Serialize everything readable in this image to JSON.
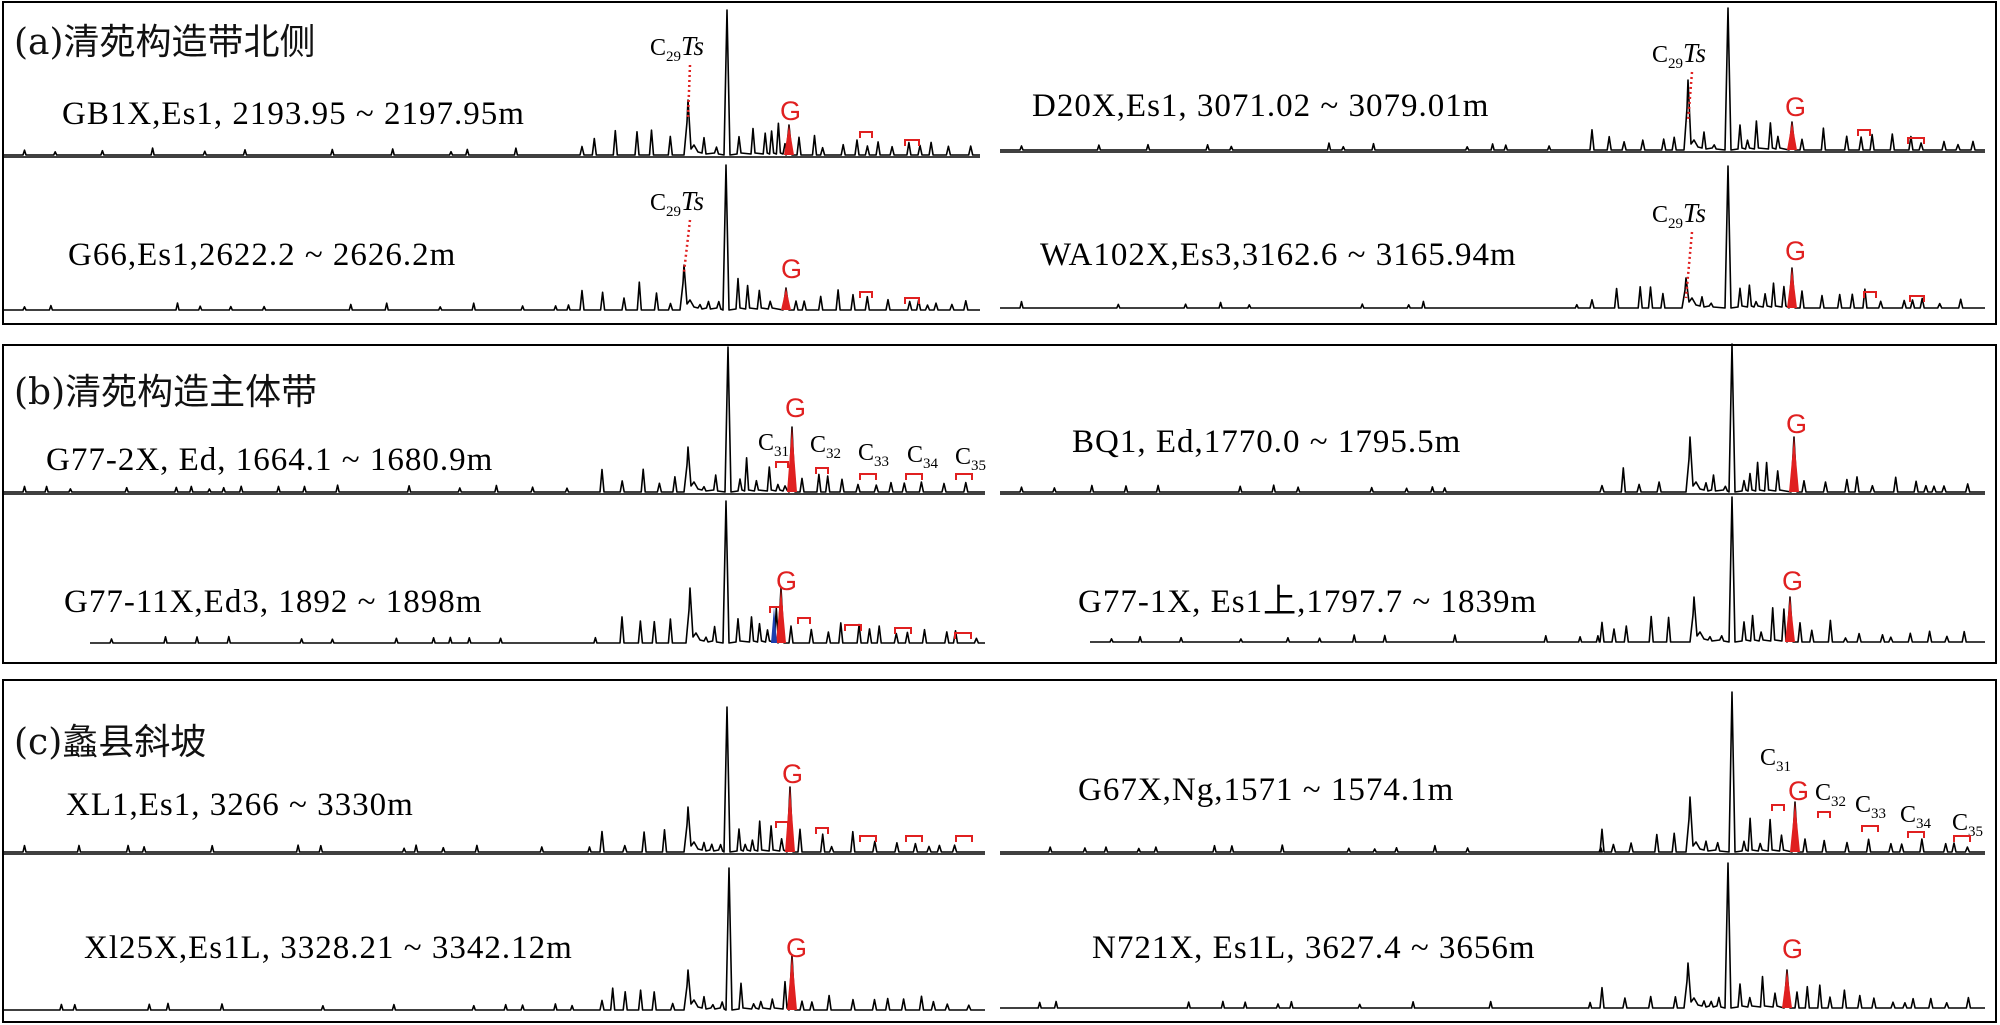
{
  "chart_data": {
    "type": "line",
    "sections": [
      {
        "label": "(a)清苑构造带北侧",
        "panels": [
          {
            "sample": "GB1X,Es1, 2193.95 ~ 2197.95m",
            "peak_labels": [
              "C29Ts",
              "G"
            ]
          },
          {
            "sample": "D20X,Es1, 3071.02 ~ 3079.01m",
            "peak_labels": [
              "C29Ts",
              "G"
            ]
          },
          {
            "sample": "G66,Es1,2622.2 ~ 2626.2m",
            "peak_labels": [
              "C29Ts",
              "G"
            ]
          },
          {
            "sample": "WA102X,Es3,3162.6 ~ 3165.94m",
            "peak_labels": [
              "C29Ts",
              "G"
            ]
          }
        ]
      },
      {
        "label": "(b)清苑构造主体带",
        "panels": [
          {
            "sample": "G77-2X, Ed, 1664.1 ~ 1680.9m",
            "peak_labels": [
              "G",
              "C31",
              "C32",
              "C33",
              "C34",
              "C35"
            ]
          },
          {
            "sample": "BQ1, Ed,1770.0 ~ 1795.5m",
            "peak_labels": [
              "G"
            ]
          },
          {
            "sample": "G77-11X,Ed3, 1892 ~ 1898m",
            "peak_labels": [
              "G"
            ]
          },
          {
            "sample": "G77-1X, Es1上,1797.7 ~ 1839m",
            "peak_labels": [
              "G"
            ]
          }
        ]
      },
      {
        "label": "(c)蠡县斜坡",
        "panels": [
          {
            "sample": "XL1,Es1, 3266 ~ 3330m",
            "peak_labels": [
              "G"
            ]
          },
          {
            "sample": "G67X,Ng,1571 ~ 1574.1m",
            "peak_labels": [
              "C31",
              "G",
              "C32",
              "C33",
              "C34",
              "C35"
            ]
          },
          {
            "sample": "Xl25X,Es1L, 3328.21 ~ 3342.12m",
            "peak_labels": [
              "G"
            ]
          },
          {
            "sample": "N721X, Es1L, 3627.4 ~ 3656m",
            "peak_labels": [
              "G"
            ]
          }
        ]
      }
    ],
    "colors": {
      "trace": "#000000",
      "gammacerane": "#e02020",
      "highlight": "#1c3fae"
    }
  }
}
